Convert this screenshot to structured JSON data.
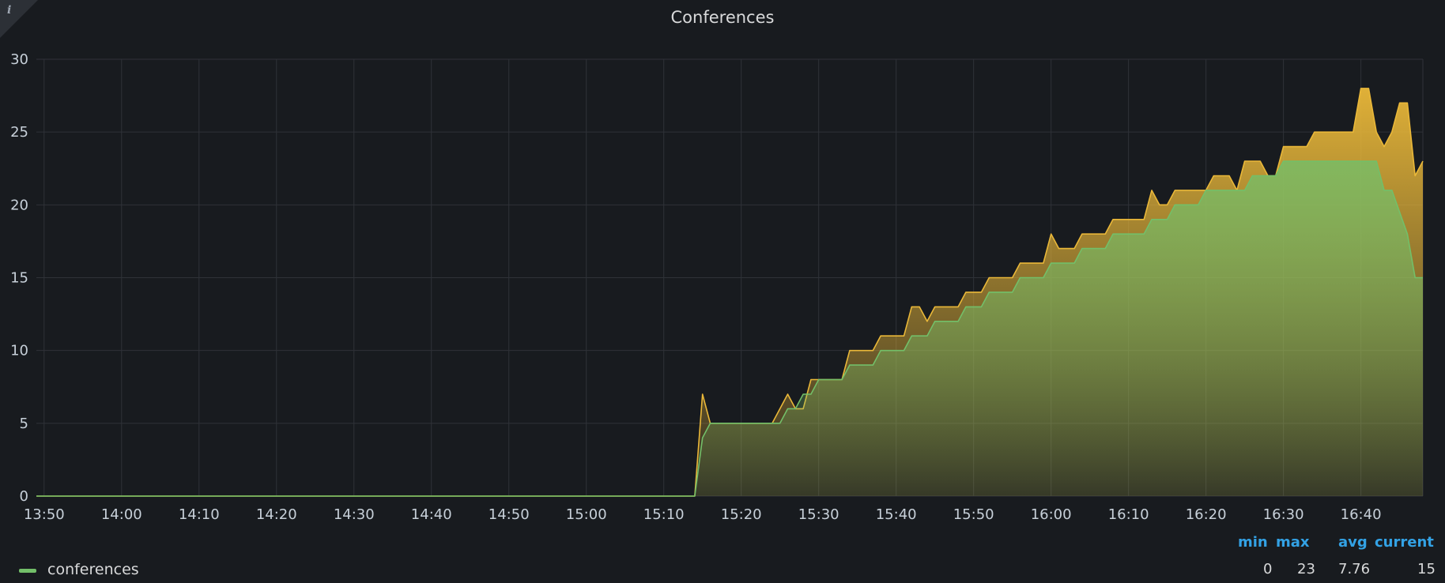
{
  "panel": {
    "title": "Conferences",
    "info_icon": "info-icon"
  },
  "chart_data": {
    "type": "area",
    "title": "Conferences",
    "x_unit": "time (HH:MM)",
    "x_ticks": [
      "13:50",
      "14:00",
      "14:10",
      "14:20",
      "14:30",
      "14:40",
      "14:50",
      "15:00",
      "15:10",
      "15:20",
      "15:30",
      "15:40",
      "15:50",
      "16:00",
      "16:10",
      "16:20",
      "16:30",
      "16:40"
    ],
    "xlim": [
      "13:49",
      "16:48"
    ],
    "ylim": [
      0,
      30
    ],
    "y_ticks": [
      "0",
      "5",
      "10",
      "15",
      "20",
      "25",
      "30"
    ],
    "grid": true,
    "legend_placement": "bottom",
    "series": [
      {
        "name": "conferences",
        "color": "#73bf69",
        "fill": "gradient-green",
        "points": [
          [
            "13:49",
            0
          ],
          [
            "15:14",
            0
          ],
          [
            "15:15",
            4
          ],
          [
            "15:16",
            5
          ],
          [
            "15:25",
            5
          ],
          [
            "15:26",
            6
          ],
          [
            "15:27",
            6
          ],
          [
            "15:28",
            7
          ],
          [
            "15:29",
            7
          ],
          [
            "15:30",
            8
          ],
          [
            "15:33",
            8
          ],
          [
            "15:34",
            9
          ],
          [
            "15:37",
            9
          ],
          [
            "15:38",
            10
          ],
          [
            "15:41",
            10
          ],
          [
            "15:42",
            11
          ],
          [
            "15:44",
            11
          ],
          [
            "15:45",
            12
          ],
          [
            "15:48",
            12
          ],
          [
            "15:49",
            13
          ],
          [
            "15:51",
            13
          ],
          [
            "15:52",
            14
          ],
          [
            "15:55",
            14
          ],
          [
            "15:56",
            15
          ],
          [
            "15:59",
            15
          ],
          [
            "16:00",
            16
          ],
          [
            "16:03",
            16
          ],
          [
            "16:04",
            17
          ],
          [
            "16:07",
            17
          ],
          [
            "16:08",
            18
          ],
          [
            "16:12",
            18
          ],
          [
            "16:13",
            19
          ],
          [
            "16:15",
            19
          ],
          [
            "16:16",
            20
          ],
          [
            "16:19",
            20
          ],
          [
            "16:20",
            21
          ],
          [
            "16:25",
            21
          ],
          [
            "16:26",
            22
          ],
          [
            "16:29",
            22
          ],
          [
            "16:30",
            23
          ],
          [
            "16:42",
            23
          ],
          [
            "16:43",
            21
          ],
          [
            "16:44",
            21
          ],
          [
            "16:46",
            18
          ],
          [
            "16:47",
            15
          ],
          [
            "16:48",
            15
          ]
        ]
      },
      {
        "name": "",
        "color": "#eab839",
        "fill": "gradient-yellow",
        "points": [
          [
            "13:49",
            0
          ],
          [
            "15:14",
            0
          ],
          [
            "15:15",
            7
          ],
          [
            "15:16",
            5
          ],
          [
            "15:23",
            5
          ],
          [
            "15:24",
            5
          ],
          [
            "15:26",
            7
          ],
          [
            "15:27",
            6
          ],
          [
            "15:28",
            6
          ],
          [
            "15:29",
            8
          ],
          [
            "15:33",
            8
          ],
          [
            "15:34",
            10
          ],
          [
            "15:37",
            10
          ],
          [
            "15:38",
            11
          ],
          [
            "15:41",
            11
          ],
          [
            "15:42",
            13
          ],
          [
            "15:43",
            13
          ],
          [
            "15:44",
            12
          ],
          [
            "15:45",
            13
          ],
          [
            "15:48",
            13
          ],
          [
            "15:49",
            14
          ],
          [
            "15:51",
            14
          ],
          [
            "15:52",
            15
          ],
          [
            "15:55",
            15
          ],
          [
            "15:56",
            16
          ],
          [
            "15:59",
            16
          ],
          [
            "16:00",
            18
          ],
          [
            "16:01",
            17
          ],
          [
            "16:03",
            17
          ],
          [
            "16:04",
            18
          ],
          [
            "16:07",
            18
          ],
          [
            "16:08",
            19
          ],
          [
            "16:12",
            19
          ],
          [
            "16:13",
            21
          ],
          [
            "16:14",
            20
          ],
          [
            "16:15",
            20
          ],
          [
            "16:16",
            21
          ],
          [
            "16:20",
            21
          ],
          [
            "16:21",
            22
          ],
          [
            "16:23",
            22
          ],
          [
            "16:24",
            21
          ],
          [
            "16:25",
            23
          ],
          [
            "16:27",
            23
          ],
          [
            "16:28",
            22
          ],
          [
            "16:29",
            22
          ],
          [
            "16:30",
            24
          ],
          [
            "16:33",
            24
          ],
          [
            "16:34",
            25
          ],
          [
            "16:39",
            25
          ],
          [
            "16:40",
            28
          ],
          [
            "16:41",
            28
          ],
          [
            "16:42",
            25
          ],
          [
            "16:43",
            24
          ],
          [
            "16:44",
            25
          ],
          [
            "16:45",
            27
          ],
          [
            "16:46",
            27
          ],
          [
            "16:47",
            22
          ],
          [
            "16:48",
            23
          ]
        ]
      }
    ]
  },
  "legend": {
    "headers": {
      "min": "min",
      "max": "max",
      "avg": "avg",
      "current": "current"
    },
    "items": [
      {
        "name": "conferences",
        "min": "0",
        "max": "23",
        "avg": "7.76",
        "current": "15",
        "color": "#73bf69"
      }
    ]
  }
}
